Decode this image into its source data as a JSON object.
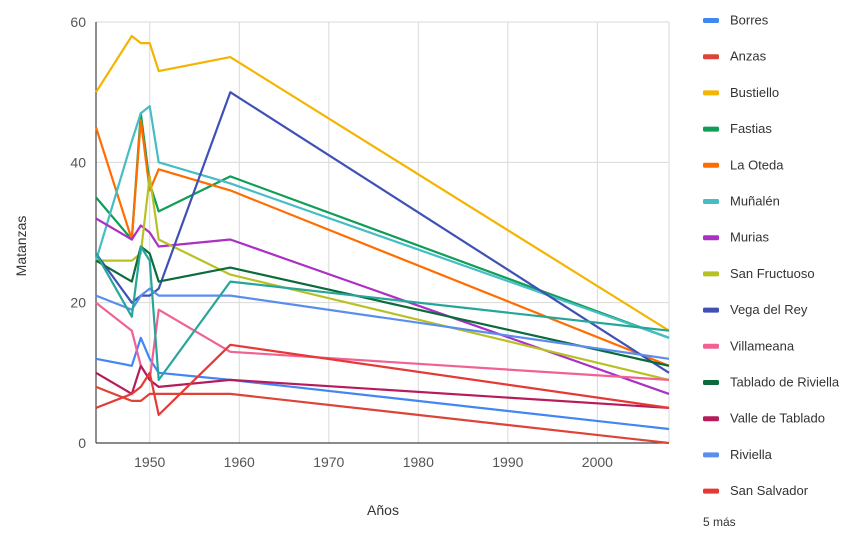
{
  "chart_data": {
    "type": "line",
    "title": "",
    "xlabel": "Años",
    "ylabel": "Matanzas",
    "xlim": [
      1944,
      2008
    ],
    "ylim": [
      0,
      60
    ],
    "x_ticks": [
      "1950",
      "1960",
      "1970",
      "1980",
      "1990",
      "2000"
    ],
    "y_ticks": [
      "0",
      "20",
      "40",
      "60"
    ],
    "grid": true,
    "legend_position": "right",
    "legend_more": "5 más",
    "x": [
      1944,
      1948,
      1949,
      1950,
      1951,
      1959,
      2008
    ],
    "series": [
      {
        "name": "Borres",
        "color": "#4285f4",
        "values": [
          12,
          11,
          15,
          12,
          10,
          9,
          2
        ]
      },
      {
        "name": "Anzas",
        "color": "#db4437",
        "values": [
          8,
          6,
          6,
          7,
          7,
          7,
          0
        ]
      },
      {
        "name": "Bustiello",
        "color": "#f4b400",
        "values": [
          50,
          58,
          57,
          57,
          53,
          55,
          16
        ]
      },
      {
        "name": "Fastias",
        "color": "#0f9d58",
        "values": [
          35,
          29,
          47,
          37,
          33,
          38,
          15
        ]
      },
      {
        "name": "La Oteda",
        "color": "#ff6d00",
        "values": [
          45,
          29,
          46,
          36,
          39,
          36,
          11
        ]
      },
      {
        "name": "Muñalén",
        "color": "#46bdc6",
        "values": [
          26,
          43,
          47,
          48,
          40,
          37,
          15
        ]
      },
      {
        "name": "Murias",
        "color": "#ab30c4",
        "values": [
          32,
          29,
          31,
          30,
          28,
          29,
          7
        ]
      },
      {
        "name": "San Fructuoso",
        "color": "#b8c124",
        "values": [
          26,
          26,
          27,
          38,
          29,
          24,
          9
        ]
      },
      {
        "name": "Vega del Rey",
        "color": "#3f51b5",
        "values": [
          27,
          20,
          21,
          21,
          22,
          50,
          10
        ]
      },
      {
        "name": "Villameana",
        "color": "#f06292",
        "values": [
          20,
          16,
          11,
          9,
          19,
          13,
          9
        ]
      },
      {
        "name": "Tablado de Riviella",
        "color": "#0b6b3a",
        "values": [
          26,
          23,
          28,
          27,
          23,
          25,
          11
        ]
      },
      {
        "name": "Valle de Tablado",
        "color": "#b71c5a",
        "values": [
          10,
          7,
          11,
          9,
          8,
          9,
          5
        ]
      },
      {
        "name": "Riviella",
        "color": "#5b8def",
        "values": [
          21,
          19,
          21,
          22,
          21,
          21,
          12
        ]
      },
      {
        "name": "San Salvador",
        "color": "#e53935",
        "values": [
          5,
          7,
          8,
          10,
          4,
          14,
          5
        ]
      },
      {
        "name": "",
        "color": "#26a69a",
        "values": [
          27,
          18,
          28,
          26,
          9,
          23,
          16
        ]
      }
    ]
  }
}
